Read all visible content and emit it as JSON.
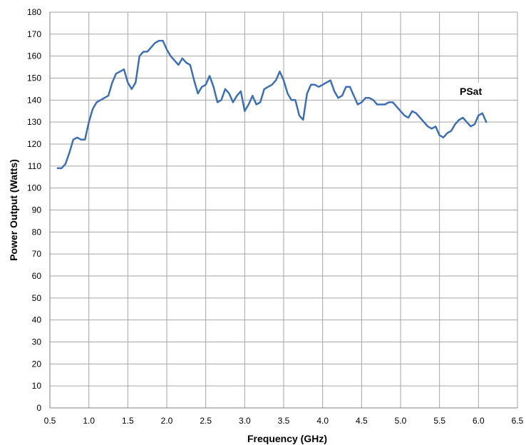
{
  "chart_data": {
    "type": "line",
    "title": "",
    "xlabel": "Frequency (GHz)",
    "ylabel": "Power Output (Watts)",
    "xlim": [
      0.5,
      6.5
    ],
    "ylim": [
      0,
      180
    ],
    "xticks": [
      "0.5",
      "1.0",
      "1.5",
      "2.0",
      "2.5",
      "3.0",
      "3.5",
      "4.0",
      "4.5",
      "5.0",
      "5.5",
      "6.0",
      "6.5"
    ],
    "yticks": [
      "0",
      "10",
      "20",
      "30",
      "40",
      "50",
      "60",
      "70",
      "80",
      "90",
      "100",
      "110",
      "120",
      "130",
      "140",
      "150",
      "160",
      "170",
      "180"
    ],
    "grid": true,
    "legend": "none",
    "annotations": [
      {
        "text": "PSat"
      }
    ],
    "line_color": "#3d6fb3",
    "series": [
      {
        "x": [
          0.6,
          0.65,
          0.7,
          0.75,
          0.8,
          0.85,
          0.9,
          0.95,
          1.0,
          1.05,
          1.1,
          1.15,
          1.2,
          1.25,
          1.3,
          1.35,
          1.4,
          1.45,
          1.5,
          1.55,
          1.6,
          1.65,
          1.7,
          1.75,
          1.8,
          1.85,
          1.9,
          1.95,
          2.0,
          2.05,
          2.1,
          2.15,
          2.2,
          2.25,
          2.3,
          2.35,
          2.4,
          2.45,
          2.5,
          2.55,
          2.6,
          2.65,
          2.7,
          2.75,
          2.8,
          2.85,
          2.9,
          2.95,
          3.0,
          3.05,
          3.1,
          3.15,
          3.2,
          3.25,
          3.3,
          3.35,
          3.4,
          3.45,
          3.5,
          3.55,
          3.6,
          3.65,
          3.7,
          3.75,
          3.8,
          3.85,
          3.9,
          3.95,
          4.0,
          4.05,
          4.1,
          4.15,
          4.2,
          4.25,
          4.3,
          4.35,
          4.4,
          4.45,
          4.5,
          4.55,
          4.6,
          4.65,
          4.7,
          4.75,
          4.8,
          4.85,
          4.9,
          4.95,
          5.0,
          5.05,
          5.1,
          5.15,
          5.2,
          5.25,
          5.3,
          5.35,
          5.4,
          5.45,
          5.5,
          5.55,
          5.6,
          5.65,
          5.7,
          5.75,
          5.8,
          5.85,
          5.9,
          5.95,
          6.0,
          6.05,
          6.1
        ],
        "values": [
          109,
          109,
          111,
          116,
          122,
          123,
          122,
          122,
          130,
          136,
          139,
          140,
          141,
          142,
          148,
          152,
          153,
          154,
          148,
          145,
          148,
          160,
          162,
          162,
          164,
          166,
          167,
          167,
          163,
          160,
          158,
          156,
          159,
          157,
          156,
          149,
          143,
          146,
          147,
          151,
          146,
          139,
          140,
          145,
          143,
          139,
          142,
          144,
          135,
          138,
          142,
          138,
          139,
          145,
          146,
          147,
          149,
          153,
          149,
          143,
          140,
          140,
          133,
          131,
          143,
          147,
          147,
          146,
          147,
          148,
          149,
          144,
          141,
          142,
          146,
          146,
          142,
          138,
          139,
          141,
          141,
          140,
          138,
          138,
          138,
          139,
          139,
          137,
          135,
          133,
          132,
          135,
          134,
          132,
          130,
          128,
          127,
          128,
          124,
          123,
          125,
          126,
          129,
          131,
          132,
          130,
          128,
          129,
          133,
          134,
          130
        ]
      }
    ]
  }
}
